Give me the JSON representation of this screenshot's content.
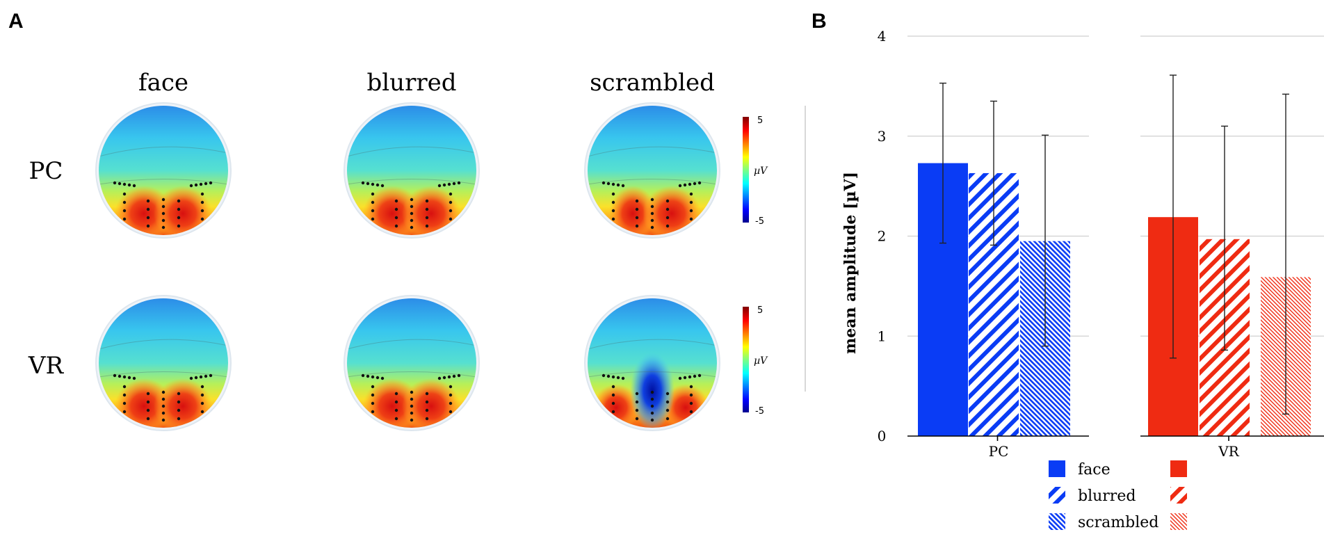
{
  "panels": {
    "a": "A",
    "b": "B"
  },
  "topomaps": {
    "conditions": [
      "face",
      "blurred",
      "scrambled"
    ],
    "rows": [
      "PC",
      "VR"
    ],
    "colorbar": {
      "max_label": "5",
      "min_label": "-5",
      "unit": "µV"
    }
  },
  "colors": {
    "pc": "#0a3cf5",
    "vr": "#ef2b12"
  },
  "chart_data": {
    "type": "bar",
    "title": "",
    "xlabel": "",
    "ylabel": "mean amplitude [µV]",
    "ylim": [
      0,
      4
    ],
    "yticks": [
      0,
      1,
      2,
      3,
      4
    ],
    "ytick_labels": [
      "0",
      "1",
      "2",
      "3",
      "4"
    ],
    "categories": [
      "PC",
      "VR"
    ],
    "series": [
      {
        "name": "face",
        "pattern": "solid",
        "values": [
          2.73,
          2.19
        ],
        "err_low": [
          1.93,
          0.78
        ],
        "err_high": [
          3.53,
          3.61
        ]
      },
      {
        "name": "blurred",
        "pattern": "hatch",
        "values": [
          2.63,
          1.97
        ],
        "err_low": [
          1.91,
          0.86
        ],
        "err_high": [
          3.35,
          3.1
        ]
      },
      {
        "name": "scrambled",
        "pattern": "dense-hatch",
        "values": [
          1.95,
          1.59
        ],
        "err_low": [
          0.9,
          0.22
        ],
        "err_high": [
          3.01,
          3.42
        ]
      }
    ],
    "legend": {
      "position": "bottom",
      "entries": [
        "face",
        "blurred",
        "scrambled"
      ]
    }
  }
}
